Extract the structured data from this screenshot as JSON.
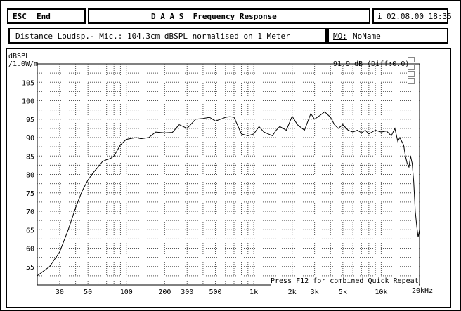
{
  "header": {
    "esc_label": "ESC",
    "end_label": "End",
    "title": "D A A S  Frequency Response",
    "info_key": "i",
    "date_time": "02.08.00 18:35"
  },
  "info_bar": {
    "distance_text": "Distance Loudsp.- Mic.: 104.3cm dBSPL normalised on 1 Meter",
    "mo_key": "MO:",
    "mo_value": "NoName"
  },
  "chart": {
    "ylabel_line1": "dBSPL",
    "ylabel_line2": "/1.0W/m",
    "marker_readout": "91.9 dB (Diff:0.0)",
    "hint": "Press F12 for combined Quick Repeat",
    "x_unit_label": "20kHz"
  },
  "chart_data": {
    "type": "line",
    "title": "Frequency Response",
    "xlabel": "",
    "ylabel": "dBSPL /1.0W/m",
    "x_scale": "log",
    "xlim": [
      20,
      20000
    ],
    "ylim": [
      50,
      110
    ],
    "grid": true,
    "x_tick_labels": [
      "30",
      "50",
      "100",
      "200",
      "300",
      "500",
      "1k",
      "2k",
      "3k",
      "5k",
      "10k"
    ],
    "y_tick_labels": [
      "105",
      "100",
      "95",
      "90",
      "85",
      "80",
      "75",
      "70",
      "65",
      "60",
      "55"
    ],
    "y_tick_values": [
      105,
      100,
      95,
      90,
      85,
      80,
      75,
      70,
      65,
      60,
      55
    ],
    "x_tick_values": [
      30,
      50,
      100,
      200,
      300,
      500,
      1000,
      2000,
      3000,
      5000,
      10000
    ],
    "series": [
      {
        "x": [
          20,
          25,
          30,
          35,
          40,
          45,
          50,
          55,
          60,
          65,
          70,
          75,
          80,
          90,
          100,
          110,
          120,
          130,
          150,
          170,
          200,
          230,
          260,
          300,
          350,
          400,
          450,
          500,
          550,
          600,
          650,
          700,
          800,
          900,
          1000,
          1100,
          1200,
          1300,
          1400,
          1500,
          1600,
          1800,
          2000,
          2200,
          2500,
          2800,
          3000,
          3300,
          3600,
          4000,
          4300,
          4600,
          5000,
          5500,
          6000,
          6500,
          7000,
          7500,
          8000,
          9000,
          10000,
          11000,
          12000,
          12800,
          13500,
          14000,
          15000,
          15500,
          16000,
          16500,
          17000,
          17500,
          18000,
          18500,
          19000,
          19500,
          20000
        ],
        "y": [
          52.5,
          55,
          59,
          65,
          71,
          75.5,
          78.5,
          80.5,
          82,
          83.5,
          84,
          84.3,
          85,
          88,
          89.5,
          89.8,
          90,
          89.7,
          90,
          91.5,
          91.3,
          91.4,
          93.5,
          92.5,
          95,
          95.2,
          95.5,
          94.5,
          95,
          95.5,
          95.7,
          95.5,
          91,
          90.5,
          91,
          93,
          91.5,
          91,
          90.5,
          92,
          93,
          92,
          95.8,
          93.5,
          92,
          96.5,
          95,
          96,
          97,
          95.5,
          93.5,
          92.5,
          93.5,
          92,
          91.5,
          92,
          91.3,
          92,
          91,
          92,
          91.5,
          91.8,
          90.5,
          92.5,
          89,
          90,
          88,
          85,
          83,
          82,
          85,
          83,
          78,
          70,
          66,
          63,
          65
        ]
      }
    ]
  }
}
